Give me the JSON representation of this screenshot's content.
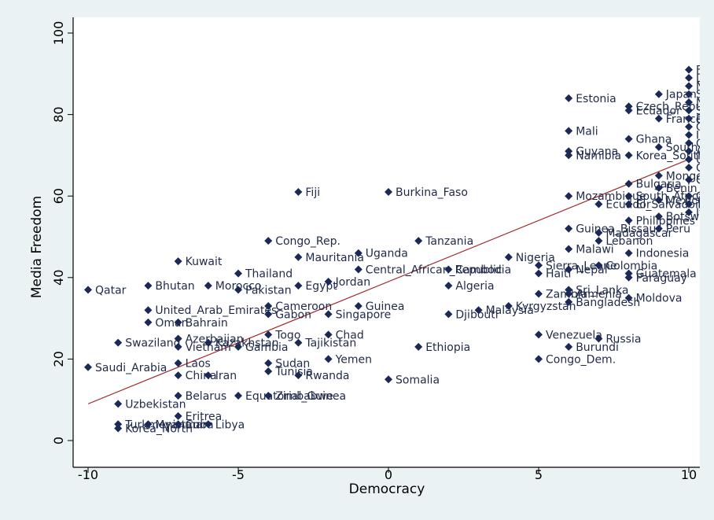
{
  "chart_data": {
    "type": "scatter",
    "xlabel": "Democracy",
    "ylabel": "Media Freedom",
    "xlim": [
      -10,
      10
    ],
    "ylim": [
      0,
      100
    ],
    "xticks": [
      "-10",
      "-5",
      "0",
      "5",
      "10"
    ],
    "yticks": [
      "0",
      "20",
      "40",
      "60",
      "80",
      "100"
    ],
    "grid": false,
    "legend": "none",
    "colors": {
      "background": "#eaf2f3",
      "plot": "#ffffff",
      "marker": "#1a2a55",
      "fit_line": "#a52a2a"
    },
    "fit_line": {
      "x": [
        -10,
        10
      ],
      "y": [
        9,
        69
      ]
    },
    "points": [
      {
        "label": "Qatar",
        "x": -10,
        "y": 37
      },
      {
        "label": "Saudi_Arabia",
        "x": -10,
        "y": 18
      },
      {
        "label": "Swaziland",
        "x": -9,
        "y": 24
      },
      {
        "label": "Uzbekistan",
        "x": -9,
        "y": 9
      },
      {
        "label": "Turkmenistan",
        "x": -9,
        "y": 4
      },
      {
        "label": "Korea_North",
        "x": -9,
        "y": 3
      },
      {
        "label": "Bhutan",
        "x": -8,
        "y": 38
      },
      {
        "label": "United_Arab_Emirates",
        "x": -8,
        "y": 32
      },
      {
        "label": "Oman",
        "x": -8,
        "y": 29
      },
      {
        "label": "Myanmar",
        "x": -8,
        "y": 4
      },
      {
        "label": "Kuwait",
        "x": -7,
        "y": 44
      },
      {
        "label": "Bahrain",
        "x": -7,
        "y": 29
      },
      {
        "label": "Azerbaijan",
        "x": -7,
        "y": 25
      },
      {
        "label": "Vietnam",
        "x": -7,
        "y": 23
      },
      {
        "label": "Laos",
        "x": -7,
        "y": 19
      },
      {
        "label": "China",
        "x": -7,
        "y": 16
      },
      {
        "label": "Belarus",
        "x": -7,
        "y": 11
      },
      {
        "label": "Eritrea",
        "x": -7,
        "y": 6
      },
      {
        "label": "Cuba",
        "x": -7,
        "y": 4
      },
      {
        "label": "Morocco",
        "x": -6,
        "y": 38
      },
      {
        "label": "Kazakhstan",
        "x": -6,
        "y": 24
      },
      {
        "label": "Iran",
        "x": -6,
        "y": 16
      },
      {
        "label": "Libya",
        "x": -6,
        "y": 4
      },
      {
        "label": "Thailand",
        "x": -5,
        "y": 41
      },
      {
        "label": "Pakistan",
        "x": -5,
        "y": 37
      },
      {
        "label": "Gambia",
        "x": -5,
        "y": 23
      },
      {
        "label": "Equatorial_Guinea",
        "x": -5,
        "y": 11
      },
      {
        "label": "Congo_Rep.",
        "x": -4,
        "y": 49
      },
      {
        "label": "Cameroon",
        "x": -4,
        "y": 33
      },
      {
        "label": "Gabon",
        "x": -4,
        "y": 31
      },
      {
        "label": "Togo",
        "x": -4,
        "y": 26
      },
      {
        "label": "Sudan",
        "x": -4,
        "y": 19
      },
      {
        "label": "Tunisia",
        "x": -4,
        "y": 17
      },
      {
        "label": "Zimbabwe",
        "x": -4,
        "y": 11
      },
      {
        "label": "Fiji",
        "x": -3,
        "y": 61
      },
      {
        "label": "Mauritania",
        "x": -3,
        "y": 45
      },
      {
        "label": "Egypt",
        "x": -3,
        "y": 38
      },
      {
        "label": "Tajikistan",
        "x": -3,
        "y": 24
      },
      {
        "label": "Rwanda",
        "x": -3,
        "y": 16
      },
      {
        "label": "Jordan",
        "x": -2,
        "y": 39
      },
      {
        "label": "Singapore",
        "x": -2,
        "y": 31
      },
      {
        "label": "Chad",
        "x": -2,
        "y": 26
      },
      {
        "label": "Yemen",
        "x": -2,
        "y": 20
      },
      {
        "label": "Uganda",
        "x": -1,
        "y": 46
      },
      {
        "label": "Central_African_Republic",
        "x": -1,
        "y": 42
      },
      {
        "label": "Guinea",
        "x": -1,
        "y": 33
      },
      {
        "label": "Burkina_Faso",
        "x": 0,
        "y": 61
      },
      {
        "label": "Somalia",
        "x": 0,
        "y": 15
      },
      {
        "label": "Tanzania",
        "x": 1,
        "y": 49
      },
      {
        "label": "Ethiopia",
        "x": 1,
        "y": 23
      },
      {
        "label": "Cambodia",
        "x": 2,
        "y": 42
      },
      {
        "label": "Algeria",
        "x": 2,
        "y": 38
      },
      {
        "label": "Djibouti",
        "x": 2,
        "y": 31
      },
      {
        "label": "Malaysia",
        "x": 3,
        "y": 32
      },
      {
        "label": "Nigeria",
        "x": 4,
        "y": 45
      },
      {
        "label": "Kyrgyzstan",
        "x": 4,
        "y": 33
      },
      {
        "label": "Sierra_Leone",
        "x": 5,
        "y": 43
      },
      {
        "label": "Haiti",
        "x": 5,
        "y": 41
      },
      {
        "label": "Zambia",
        "x": 5,
        "y": 36
      },
      {
        "label": "Venezuela",
        "x": 5,
        "y": 26
      },
      {
        "label": "Congo_Dem.",
        "x": 5,
        "y": 20
      },
      {
        "label": "Estonia",
        "x": 6,
        "y": 84
      },
      {
        "label": "Mali",
        "x": 6,
        "y": 76
      },
      {
        "label": "Guyana",
        "x": 6,
        "y": 71
      },
      {
        "label": "Namibia",
        "x": 6,
        "y": 70
      },
      {
        "label": "Mozambique",
        "x": 6,
        "y": 60
      },
      {
        "label": "Guinea_Bissau",
        "x": 6,
        "y": 52
      },
      {
        "label": "Malawi",
        "x": 6,
        "y": 47
      },
      {
        "label": "Nepal",
        "x": 6,
        "y": 42
      },
      {
        "label": "Sri_Lanka",
        "x": 6,
        "y": 37
      },
      {
        "label": "Armenia",
        "x": 6,
        "y": 36
      },
      {
        "label": "Bangladesh",
        "x": 6,
        "y": 34
      },
      {
        "label": "Burundi",
        "x": 6,
        "y": 23
      },
      {
        "label": "Russia",
        "x": 7,
        "y": 25
      },
      {
        "label": "Colombia",
        "x": 7,
        "y": 43
      },
      {
        "label": "Madagascar",
        "x": 7,
        "y": 51
      },
      {
        "label": "Lebanon",
        "x": 7,
        "y": 49
      },
      {
        "label": "Ecuador",
        "x": 7,
        "y": 58
      },
      {
        "label": "Czech_Republic",
        "x": 8,
        "y": 82
      },
      {
        "label": "Ecuador",
        "x": 8,
        "y": 81
      },
      {
        "label": "Ghana",
        "x": 8,
        "y": 74
      },
      {
        "label": "Korea_South",
        "x": 8,
        "y": 70
      },
      {
        "label": "Bulgaria",
        "x": 8,
        "y": 63
      },
      {
        "label": "South_Africa",
        "x": 8,
        "y": 60
      },
      {
        "label": "El_Salvador",
        "x": 8,
        "y": 58
      },
      {
        "label": "Philippines",
        "x": 8,
        "y": 54
      },
      {
        "label": "Indonesia",
        "x": 8,
        "y": 46
      },
      {
        "label": "Guatemala",
        "x": 8,
        "y": 41
      },
      {
        "label": "Paraguay",
        "x": 8,
        "y": 40
      },
      {
        "label": "Moldova",
        "x": 8,
        "y": 35
      },
      {
        "label": "Japan",
        "x": 9,
        "y": 85
      },
      {
        "label": "France",
        "x": 9,
        "y": 79
      },
      {
        "label": "South_Korea",
        "x": 9,
        "y": 72
      },
      {
        "label": "Mongolia",
        "x": 9,
        "y": 65
      },
      {
        "label": "Benin",
        "x": 9,
        "y": 62
      },
      {
        "label": "Mexico",
        "x": 9,
        "y": 59
      },
      {
        "label": "Botswana",
        "x": 9,
        "y": 55
      },
      {
        "label": "Peru",
        "x": 9,
        "y": 52
      },
      {
        "label": "Finland",
        "x": 10,
        "y": 91
      },
      {
        "label": "Denmark",
        "x": 10,
        "y": 89
      },
      {
        "label": "Norway",
        "x": 10,
        "y": 87
      },
      {
        "label": "Sweden",
        "x": 10,
        "y": 85
      },
      {
        "label": "Netherlands",
        "x": 10,
        "y": 83
      },
      {
        "label": "Switzerland",
        "x": 10,
        "y": 81
      },
      {
        "label": "Portugal",
        "x": 10,
        "y": 79
      },
      {
        "label": "Germany",
        "x": 10,
        "y": 77
      },
      {
        "label": "Ireland",
        "x": 10,
        "y": 75
      },
      {
        "label": "Canada",
        "x": 10,
        "y": 73
      },
      {
        "label": "Australia",
        "x": 10,
        "y": 71
      },
      {
        "label": "Uruguay",
        "x": 10,
        "y": 69
      },
      {
        "label": "Costa_Rica",
        "x": 10,
        "y": 67
      },
      {
        "label": "Chile",
        "x": 10,
        "y": 64
      },
      {
        "label": "Greece",
        "x": 10,
        "y": 60
      },
      {
        "label": "Taiwan",
        "x": 10,
        "y": 58
      },
      {
        "label": "Italy",
        "x": 10,
        "y": 56
      }
    ]
  }
}
